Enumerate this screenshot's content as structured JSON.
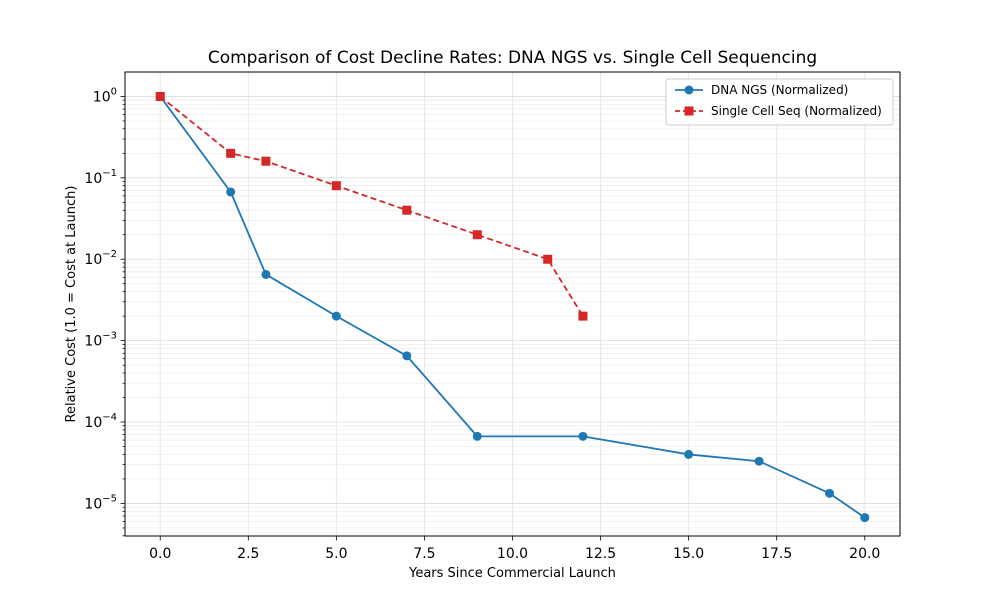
{
  "chart_data": {
    "type": "line",
    "title": "Comparison of Cost Decline Rates: DNA NGS vs. Single Cell Sequencing",
    "xlabel": "Years Since Commercial Launch",
    "ylabel": "Relative Cost (1.0 = Cost at Launch)",
    "yscale": "log",
    "xlim": [
      -1.0,
      21.0
    ],
    "ylim_log10": [
      -5.4,
      0.3
    ],
    "grid": true,
    "legend_position": "top-right",
    "x_ticks": [
      0.0,
      2.5,
      5.0,
      7.5,
      10.0,
      12.5,
      15.0,
      17.5,
      20.0
    ],
    "x_tick_labels": [
      "0.0",
      "2.5",
      "5.0",
      "7.5",
      "10.0",
      "12.5",
      "15.0",
      "17.5",
      "20.0"
    ],
    "y_tick_exponents": [
      0,
      -1,
      -2,
      -3,
      -4,
      -5
    ],
    "series": [
      {
        "name": "DNA NGS (Normalized)",
        "color": "#1f77b4",
        "marker": "circle",
        "linestyle": "solid",
        "x": [
          0,
          2,
          3,
          5,
          7,
          9,
          12,
          15,
          17,
          19,
          20
        ],
        "y": [
          1.0,
          0.067,
          0.0065,
          0.002,
          0.00065,
          6.67e-05,
          6.67e-05,
          4e-05,
          3.3e-05,
          1.33e-05,
          6.7e-06
        ]
      },
      {
        "name": "Single Cell Seq (Normalized)",
        "color": "#d62728",
        "marker": "square",
        "linestyle": "dashed",
        "x": [
          0,
          2,
          3,
          5,
          7,
          9,
          11,
          12
        ],
        "y": [
          1.0,
          0.2,
          0.16,
          0.08,
          0.04,
          0.02,
          0.01,
          0.002
        ]
      }
    ]
  }
}
